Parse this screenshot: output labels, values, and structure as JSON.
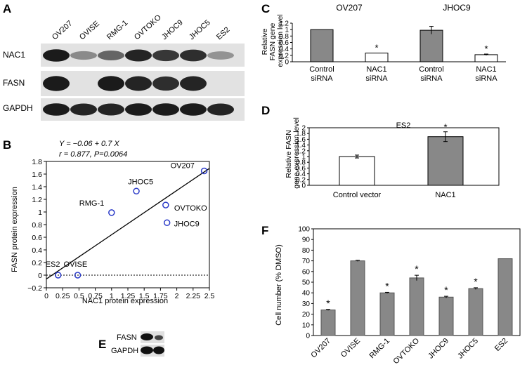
{
  "panels": {
    "a": "A",
    "b": "B",
    "c": "C",
    "d": "D",
    "e": "E",
    "f": "F"
  },
  "colors": {
    "gray_bar": "#888888",
    "white_bar": "#ffffff",
    "point": "#2b3bc8",
    "axis": "#000000"
  },
  "blot_a": {
    "lanes": [
      "OV207",
      "OVISE",
      "RMG-1",
      "OVTOKO",
      "JHOC9",
      "JHOC5",
      "ES2"
    ],
    "rows": [
      "NAC1",
      "FASN",
      "GAPDH"
    ]
  },
  "blot_e": {
    "rows": [
      "FASN",
      "GAPDH"
    ]
  },
  "chart_data": [
    {
      "id": "B",
      "type": "scatter",
      "equation": "Y = −0.06 + 0.7 X",
      "stats": "r = 0.877, P=0.0064",
      "xlabel": "NAC1 protein expression",
      "ylabel": "FASN protein expression",
      "xlim": [
        0,
        2.5
      ],
      "ylim": [
        -0.2,
        1.8
      ],
      "xticks": [
        "0",
        "0.25",
        "0.5",
        "0.75",
        "1",
        "1.25",
        "1.5",
        "1.75",
        "2",
        "2.25",
        "2.5"
      ],
      "yticks": [
        "−0.2",
        "0",
        "0.2",
        "0.4",
        "0.6",
        "0.8",
        "1",
        "1.2",
        "1.4",
        "1.6",
        "1.8"
      ],
      "points": [
        {
          "label": "OV207",
          "x": 2.42,
          "y": 1.65
        },
        {
          "label": "JHOC5",
          "x": 1.38,
          "y": 1.33
        },
        {
          "label": "RMG-1",
          "x": 1.0,
          "y": 0.99
        },
        {
          "label": "OVTOKO",
          "x": 1.83,
          "y": 1.11
        },
        {
          "label": "JHOC9",
          "x": 1.85,
          "y": 0.83
        },
        {
          "label": "ES2",
          "x": 0.18,
          "y": 0.0
        },
        {
          "label": "OVISE",
          "x": 0.48,
          "y": 0.0
        }
      ],
      "fit": {
        "intercept": -0.06,
        "slope": 0.7
      },
      "zero_line": "dotted"
    },
    {
      "id": "C",
      "type": "bar",
      "ylabel": "Relative FASN gene expression level",
      "ylim": [
        0,
        1.2
      ],
      "yticks": [
        "0",
        "0.2",
        "0.4",
        "0.6",
        "0.8",
        "1",
        "1.2"
      ],
      "groups": [
        "OV207",
        "JHOC9"
      ],
      "categories": [
        {
          "line1": "Control",
          "line2": "siRNA",
          "value": 1.0,
          "err": 0,
          "fill": "gray",
          "star": false
        },
        {
          "line1": "NAC1",
          "line2": "siRNA",
          "value": 0.27,
          "err": 0,
          "fill": "white",
          "star": true
        },
        {
          "line1": "Control",
          "line2": "siRNA",
          "value": 0.98,
          "err": 0.12,
          "fill": "gray",
          "star": false
        },
        {
          "line1": "NAC1",
          "line2": "siRNA",
          "value": 0.22,
          "err": 0.02,
          "fill": "white",
          "star": true
        }
      ]
    },
    {
      "id": "D",
      "type": "bar",
      "title": "ES2",
      "ylabel": "Relative FASN gene expression level",
      "ylim": [
        0,
        2
      ],
      "yticks": [
        "0",
        "0.2",
        "0.4",
        "0.6",
        "0.8",
        "1",
        "1.2",
        "1.4",
        "1.6",
        "1.8",
        "2"
      ],
      "categories": [
        {
          "label": "Control vector",
          "value": 1.0,
          "err": 0.05,
          "fill": "white",
          "star": false
        },
        {
          "label": "NAC1",
          "value": 1.69,
          "err": 0.17,
          "fill": "gray",
          "star": true
        }
      ]
    },
    {
      "id": "F",
      "type": "bar",
      "ylabel": "Cell number (% DMSO)",
      "ylim": [
        0,
        100
      ],
      "yticks": [
        "0",
        "10",
        "20",
        "30",
        "40",
        "50",
        "60",
        "70",
        "80",
        "90",
        "100"
      ],
      "categories": [
        {
          "label": "OV207",
          "value": 24,
          "err": 0.5,
          "star": true
        },
        {
          "label": "OVISE",
          "value": 70,
          "err": 0.5,
          "star": false
        },
        {
          "label": "RMG-1",
          "value": 40,
          "err": 0.5,
          "star": true
        },
        {
          "label": "OVTOKO",
          "value": 54,
          "err": 2.5,
          "star": true
        },
        {
          "label": "JHOC9",
          "value": 36,
          "err": 0.8,
          "star": true
        },
        {
          "label": "JHOC5",
          "value": 44,
          "err": 0.8,
          "star": true
        },
        {
          "label": "ES2",
          "value": 72,
          "err": 0,
          "star": false
        }
      ]
    }
  ]
}
